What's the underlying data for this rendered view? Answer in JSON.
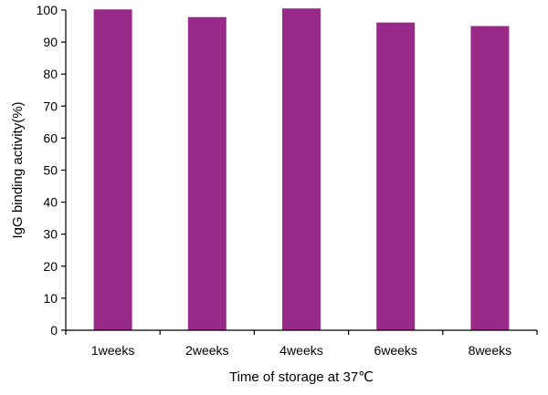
{
  "chart_data": {
    "type": "bar",
    "categories": [
      "1weeks",
      "2weeks",
      "4weeks",
      "6weeks",
      "8weeks"
    ],
    "values": [
      100.2,
      97.8,
      100.5,
      96.1,
      95.0
    ],
    "xlabel": "Time of storage at 37℃",
    "ylabel": "IgG binding activity(%)",
    "ylim": [
      0,
      100
    ],
    "yticks": [
      0,
      10,
      20,
      30,
      40,
      50,
      60,
      70,
      80,
      90,
      100
    ],
    "bar_color": "#982a8a",
    "grid": false,
    "legend": "none"
  }
}
